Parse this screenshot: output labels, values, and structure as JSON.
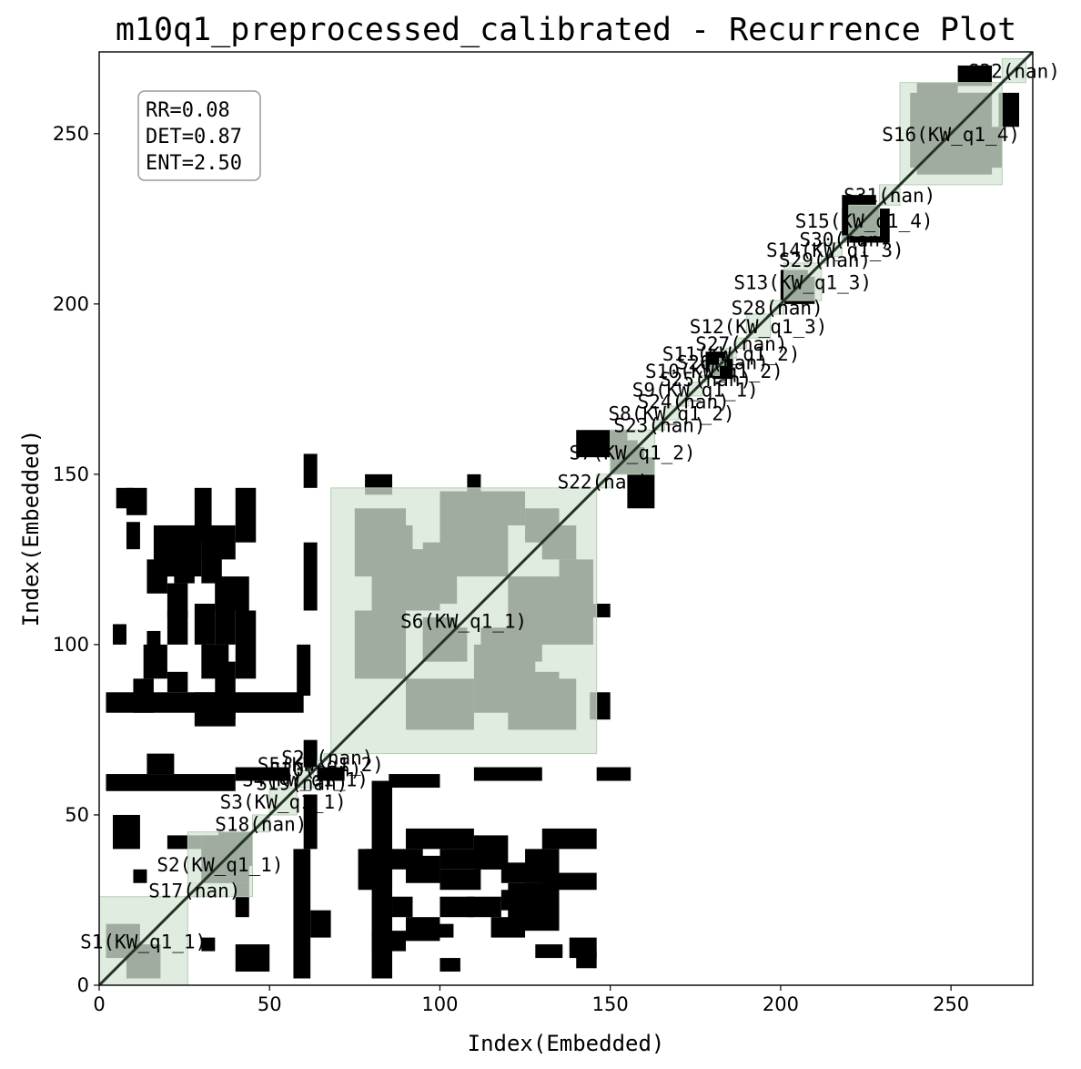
{
  "chart_data": {
    "type": "heatmap",
    "title": "m10q1_preprocessed_calibrated - Recurrence Plot",
    "xlabel": "Index(Embedded)",
    "ylabel": "Index(Embedded)",
    "xlim": [
      0,
      274
    ],
    "ylim": [
      0,
      274
    ],
    "xticks": [
      0,
      50,
      100,
      150,
      200,
      250
    ],
    "yticks": [
      0,
      50,
      100,
      150,
      200,
      250
    ],
    "grid": false,
    "colors": {
      "recurrence": "#000000",
      "segment_fill": "#d7e6d7",
      "segment_edge": "#b5cfb5",
      "overlap": "#253525"
    },
    "stats": [
      "RR=0.08",
      "DET=0.87",
      "ENT=2.50"
    ],
    "segments": [
      {
        "label": "S1(KW_q1_1)",
        "start": 0,
        "end": 26
      },
      {
        "label": "S17(nan)",
        "start": 26,
        "end": 30
      },
      {
        "label": "S2(KW_q1_1)",
        "start": 26,
        "end": 45
      },
      {
        "label": "S18(nan)",
        "start": 45,
        "end": 50
      },
      {
        "label": "S3(KW_q1_1)",
        "start": 50,
        "end": 58
      },
      {
        "label": "S19(nan)",
        "start": 58,
        "end": 61
      },
      {
        "label": "S4(KW_q1_1)",
        "start": 58,
        "end": 63
      },
      {
        "label": "S20(nan)",
        "start": 63,
        "end": 64
      },
      {
        "label": "S5(KW_q1_2)",
        "start": 64,
        "end": 66
      },
      {
        "label": "S21(nan)",
        "start": 66,
        "end": 68
      },
      {
        "label": "S6(KW_q1_1)",
        "start": 68,
        "end": 146
      },
      {
        "label": "S22(nan)",
        "start": 146,
        "end": 150
      },
      {
        "label": "S7(KW_q1_2)",
        "start": 150,
        "end": 163
      },
      {
        "label": "S23(nan)",
        "start": 163,
        "end": 166
      },
      {
        "label": "S8(KW_q1_2)",
        "start": 166,
        "end": 170
      },
      {
        "label": "S24(nan)",
        "start": 170,
        "end": 173
      },
      {
        "label": "S9(KW_q1_1)",
        "start": 173,
        "end": 177
      },
      {
        "label": "S25(nan)",
        "start": 177,
        "end": 179
      },
      {
        "label": "S10(KW_q1_2)",
        "start": 179,
        "end": 182
      },
      {
        "label": "S26(nan)",
        "start": 182,
        "end": 184
      },
      {
        "label": "S11(KW_q1_2)",
        "start": 184,
        "end": 187
      },
      {
        "label": "S27(nan)",
        "start": 187,
        "end": 190
      },
      {
        "label": "S12(KW_q1_3)",
        "start": 190,
        "end": 197
      },
      {
        "label": "S28(nan)",
        "start": 197,
        "end": 201
      },
      {
        "label": "S13(KW_q1_3)",
        "start": 201,
        "end": 212
      },
      {
        "label": "S29(nan)",
        "start": 212,
        "end": 214
      },
      {
        "label": "S14(KW_q1_3)",
        "start": 214,
        "end": 218
      },
      {
        "label": "S30(nan)",
        "start": 218,
        "end": 220
      },
      {
        "label": "S15(KW_q1_4)",
        "start": 220,
        "end": 229
      },
      {
        "label": "S31(nan)",
        "start": 229,
        "end": 235
      },
      {
        "label": "S16(KW_q1_4)",
        "start": 235,
        "end": 265
      },
      {
        "label": "S32(nan)",
        "start": 265,
        "end": 272
      }
    ],
    "recurrence_blocks": [
      [
        8,
        18,
        2,
        12
      ],
      [
        30,
        44,
        30,
        44
      ],
      [
        35,
        45,
        35,
        45
      ],
      [
        40,
        44,
        20,
        30
      ],
      [
        80,
        100,
        110,
        128
      ],
      [
        95,
        105,
        95,
        108
      ],
      [
        112,
        130,
        95,
        105
      ],
      [
        90,
        110,
        75,
        90
      ],
      [
        120,
        140,
        75,
        90
      ],
      [
        100,
        120,
        120,
        145
      ],
      [
        125,
        135,
        130,
        140
      ],
      [
        85,
        92,
        120,
        135
      ],
      [
        135,
        145,
        110,
        125
      ],
      [
        150,
        158,
        150,
        160
      ],
      [
        155,
        163,
        140,
        155
      ],
      [
        180,
        186,
        178,
        186
      ],
      [
        200,
        208,
        200,
        210
      ],
      [
        218,
        228,
        218,
        232
      ],
      [
        240,
        262,
        238,
        262
      ],
      [
        240,
        250,
        250,
        262
      ],
      [
        255,
        265,
        240,
        252
      ],
      [
        252,
        262,
        264,
        270
      ],
      [
        13,
        20,
        90,
        100
      ],
      [
        14,
        20,
        115,
        125
      ],
      [
        20,
        26,
        108,
        118
      ],
      [
        28,
        40,
        76,
        86
      ],
      [
        30,
        38,
        90,
        100
      ],
      [
        28,
        34,
        100,
        112
      ],
      [
        20,
        30,
        120,
        135
      ],
      [
        30,
        40,
        125,
        135
      ],
      [
        34,
        44,
        110,
        120
      ],
      [
        2,
        40,
        57,
        62
      ],
      [
        2,
        60,
        80,
        86
      ],
      [
        8,
        14,
        138,
        146
      ],
      [
        78,
        86,
        144,
        150
      ],
      [
        108,
        112,
        144,
        150
      ],
      [
        78,
        95,
        34,
        40
      ],
      [
        100,
        118,
        34,
        40
      ],
      [
        118,
        130,
        30,
        36
      ],
      [
        90,
        110,
        40,
        46
      ],
      [
        130,
        146,
        40,
        46
      ],
      [
        86,
        92,
        20,
        26
      ],
      [
        100,
        110,
        20,
        26
      ],
      [
        120,
        135,
        16,
        24
      ],
      [
        128,
        136,
        8,
        12
      ],
      [
        80,
        90,
        10,
        16
      ],
      [
        130,
        146,
        28,
        33
      ],
      [
        140,
        146,
        5,
        10
      ],
      [
        100,
        106,
        4,
        8
      ],
      [
        96,
        104,
        14,
        18
      ],
      [
        118,
        126,
        22,
        28
      ],
      [
        10,
        14,
        30,
        34
      ],
      [
        4,
        12,
        40,
        50
      ],
      [
        14,
        22,
        62,
        68
      ],
      [
        64,
        72,
        60,
        64
      ],
      [
        40,
        56,
        60,
        64
      ],
      [
        85,
        100,
        58,
        62
      ],
      [
        110,
        130,
        60,
        64
      ],
      [
        146,
        156,
        60,
        64
      ]
    ]
  }
}
